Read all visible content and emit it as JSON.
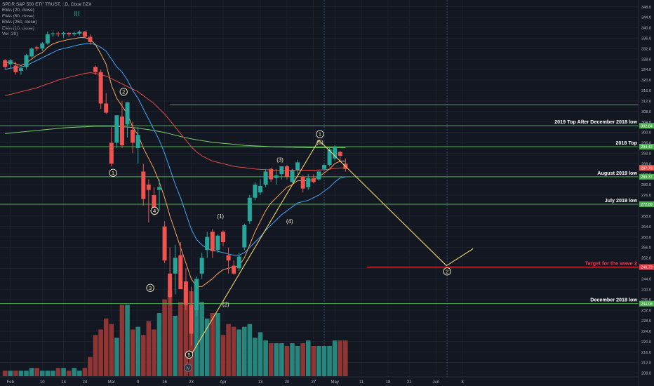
{
  "legend": {
    "lines": [
      "SPDR S&P 500 ETF TRUST, 1D, Cboe BZX",
      "EMA (20, close)",
      "EMA (60, close)",
      "EMA (250, close)",
      "EMA (10, close)",
      "Vol (20)"
    ]
  },
  "colors": {
    "background": "#131722",
    "up": "#26a69a",
    "down": "#ef5350",
    "vol_up": "#26857d",
    "vol_down": "#8f3534",
    "ema10": "#f7a35c",
    "ema20": "#42a5f5",
    "ema60": "#e04a4a",
    "ema250": "#7dcc6e",
    "level_line": "#4caf50",
    "target_line": "#f23645",
    "wave_path": "#f2d36b",
    "wave_label": "#f7f0c8",
    "axis_text": "#b2b5be"
  },
  "chart_data": {
    "type": "candlestick",
    "title": "SPDR S&P 500 ETF TRUST, 1D, Cboe BZX",
    "y_axis_ticks": [
      208,
      212,
      216,
      220,
      224,
      228,
      232,
      236,
      240,
      244,
      248,
      252,
      256,
      260,
      264,
      268,
      272,
      276,
      280,
      284,
      288,
      292,
      296,
      300,
      304,
      308,
      312,
      316,
      320,
      324,
      328,
      332,
      336,
      340,
      344,
      348
    ],
    "ylim": [
      206.5,
      349.5
    ],
    "x_axis_ticks": [
      {
        "label": "Feb",
        "bar": 1
      },
      {
        "label": "10",
        "bar": 7
      },
      {
        "label": "14",
        "bar": 11
      },
      {
        "label": "24",
        "bar": 15
      },
      {
        "label": "Mar",
        "bar": 20
      },
      {
        "label": "9",
        "bar": 25
      },
      {
        "label": "16",
        "bar": 30
      },
      {
        "label": "23",
        "bar": 35
      },
      {
        "label": "Apr",
        "bar": 41
      },
      {
        "label": "13",
        "bar": 48
      },
      {
        "label": "20",
        "bar": 53
      },
      {
        "label": "27",
        "bar": 58
      },
      {
        "label": "May",
        "bar": 62
      },
      {
        "label": "11",
        "bar": 67
      },
      {
        "label": "18",
        "bar": 72
      },
      {
        "label": "22",
        "bar": 76
      },
      {
        "label": "Jun",
        "bar": 81
      },
      {
        "label": "8",
        "bar": 86
      }
    ],
    "candles": [
      {
        "o": 327.5,
        "h": 328.0,
        "l": 324.0,
        "c": 325.0
      },
      {
        "o": 326.0,
        "h": 328.0,
        "l": 324.5,
        "c": 327.5
      },
      {
        "o": 325.5,
        "h": 327.0,
        "l": 322.0,
        "c": 323.0
      },
      {
        "o": 323.5,
        "h": 325.0,
        "l": 322.0,
        "c": 324.5
      },
      {
        "o": 325.0,
        "h": 330.0,
        "l": 324.0,
        "c": 329.5
      },
      {
        "o": 329.0,
        "h": 332.5,
        "l": 328.5,
        "c": 332.0
      },
      {
        "o": 332.5,
        "h": 333.0,
        "l": 331.0,
        "c": 332.0
      },
      {
        "o": 332.0,
        "h": 334.5,
        "l": 331.0,
        "c": 334.0
      },
      {
        "o": 334.0,
        "h": 338.5,
        "l": 333.5,
        "c": 337.5
      },
      {
        "o": 337.5,
        "h": 338.5,
        "l": 336.5,
        "c": 337.8
      },
      {
        "o": 337.8,
        "h": 338.5,
        "l": 336.5,
        "c": 337.5
      },
      {
        "o": 337.5,
        "h": 338.5,
        "l": 336.0,
        "c": 338.0
      },
      {
        "o": 338.0,
        "h": 338.2,
        "l": 336.5,
        "c": 337.5
      },
      {
        "o": 337.5,
        "h": 338.5,
        "l": 336.8,
        "c": 338.0
      },
      {
        "o": 337.7,
        "h": 339.0,
        "l": 337.0,
        "c": 338.5
      },
      {
        "o": 338.5,
        "h": 338.8,
        "l": 336.0,
        "c": 336.5
      },
      {
        "o": 336.5,
        "h": 337.5,
        "l": 333.5,
        "c": 334.5
      },
      {
        "o": 325.0,
        "h": 325.5,
        "l": 322.0,
        "c": 323.0
      },
      {
        "o": 323.0,
        "h": 324.0,
        "l": 309.0,
        "c": 311.0
      },
      {
        "o": 311.0,
        "h": 315.0,
        "l": 307.0,
        "c": 307.5
      },
      {
        "o": 296.0,
        "h": 302.0,
        "l": 287.0,
        "c": 288.0
      },
      {
        "o": 296.0,
        "h": 306.0,
        "l": 294.0,
        "c": 306.5
      },
      {
        "o": 306.0,
        "h": 312.0,
        "l": 294.0,
        "c": 295.0
      },
      {
        "o": 303.0,
        "h": 311.0,
        "l": 298.0,
        "c": 311.5
      },
      {
        "o": 301.0,
        "h": 304.0,
        "l": 292.0,
        "c": 296.0
      },
      {
        "o": 294.0,
        "h": 302.0,
        "l": 288.0,
        "c": 299.0
      },
      {
        "o": 285.0,
        "h": 288.0,
        "l": 272.0,
        "c": 274.5
      },
      {
        "o": 280.0,
        "h": 282.0,
        "l": 265.5,
        "c": 278.0
      },
      {
        "o": 276.0,
        "h": 279.0,
        "l": 268.0,
        "c": 270.0
      },
      {
        "o": 278.0,
        "h": 282.0,
        "l": 270.0,
        "c": 279.0
      },
      {
        "o": 264.0,
        "h": 266.0,
        "l": 250.0,
        "c": 251.0
      },
      {
        "o": 246.0,
        "h": 256.0,
        "l": 234.0,
        "c": 237.0
      },
      {
        "o": 246.0,
        "h": 257.0,
        "l": 238.0,
        "c": 252.0
      },
      {
        "o": 253.0,
        "h": 258.0,
        "l": 240.0,
        "c": 240.0
      },
      {
        "o": 243.0,
        "h": 248.0,
        "l": 232.0,
        "c": 234.0
      },
      {
        "o": 234.0,
        "h": 241.0,
        "l": 218.5,
        "c": 223.0
      },
      {
        "o": 232.0,
        "h": 245.0,
        "l": 230.0,
        "c": 244.0
      },
      {
        "o": 246.0,
        "h": 254.0,
        "l": 244.0,
        "c": 252.0
      },
      {
        "o": 255.0,
        "h": 262.0,
        "l": 252.0,
        "c": 260.0
      },
      {
        "o": 262.0,
        "h": 263.0,
        "l": 252.0,
        "c": 254.5
      },
      {
        "o": 255.0,
        "h": 261.0,
        "l": 254.0,
        "c": 260.5
      },
      {
        "o": 262.0,
        "h": 262.5,
        "l": 256.5,
        "c": 258.0
      },
      {
        "o": 253.0,
        "h": 256.0,
        "l": 246.0,
        "c": 251.0
      },
      {
        "o": 249.0,
        "h": 251.0,
        "l": 245.5,
        "c": 246.0
      },
      {
        "o": 248.0,
        "h": 254.0,
        "l": 247.0,
        "c": 252.5
      },
      {
        "o": 256.0,
        "h": 265.0,
        "l": 255.0,
        "c": 264.5
      },
      {
        "o": 266.0,
        "h": 276.0,
        "l": 265.0,
        "c": 275.0
      },
      {
        "o": 275.0,
        "h": 281.0,
        "l": 274.0,
        "c": 280.0
      },
      {
        "o": 277.0,
        "h": 282.0,
        "l": 276.0,
        "c": 279.5
      },
      {
        "o": 280.0,
        "h": 286.0,
        "l": 279.0,
        "c": 285.0
      },
      {
        "o": 286.0,
        "h": 286.5,
        "l": 281.0,
        "c": 282.0
      },
      {
        "o": 282.5,
        "h": 286.0,
        "l": 280.0,
        "c": 283.5
      },
      {
        "o": 284.0,
        "h": 287.0,
        "l": 282.0,
        "c": 287.0
      },
      {
        "o": 287.0,
        "h": 287.5,
        "l": 282.0,
        "c": 283.0
      },
      {
        "o": 281.0,
        "h": 286.0,
        "l": 280.5,
        "c": 285.5
      },
      {
        "o": 285.5,
        "h": 289.5,
        "l": 284.0,
        "c": 288.5
      },
      {
        "o": 283.0,
        "h": 283.5,
        "l": 277.0,
        "c": 278.5
      },
      {
        "o": 279.0,
        "h": 284.0,
        "l": 278.0,
        "c": 282.5
      },
      {
        "o": 282.5,
        "h": 284.0,
        "l": 280.5,
        "c": 281.0
      },
      {
        "o": 282.0,
        "h": 285.5,
        "l": 281.5,
        "c": 285.0
      },
      {
        "o": 286.0,
        "h": 288.0,
        "l": 285.0,
        "c": 287.5
      },
      {
        "o": 287.5,
        "h": 294.0,
        "l": 287.0,
        "c": 293.5
      },
      {
        "o": 290.0,
        "h": 295.0,
        "l": 289.0,
        "c": 294.5
      },
      {
        "o": 292.5,
        "h": 293.0,
        "l": 288.5,
        "c": 291.0
      },
      {
        "o": 288.0,
        "h": 290.0,
        "l": 285.0,
        "c": 286.0
      }
    ],
    "volume": [
      2,
      2,
      2,
      2,
      2,
      3,
      3,
      2,
      2,
      2,
      3,
      3,
      2,
      3,
      2,
      3,
      7,
      15,
      17,
      21,
      19,
      14,
      26,
      26,
      17,
      18,
      15,
      20,
      17,
      23,
      28,
      31,
      22,
      27,
      32,
      31,
      34,
      27,
      21,
      23,
      23,
      15,
      19,
      18,
      17,
      18,
      19,
      14,
      16,
      13,
      12,
      12,
      12,
      11,
      12,
      11,
      12,
      13,
      11,
      11,
      11,
      11,
      13,
      13,
      13
    ],
    "volume_max": 34,
    "ema10": [
      326.5,
      326.8,
      326.2,
      325.5,
      326.5,
      328,
      329.5,
      330.5,
      332.5,
      333.8,
      334.5,
      335,
      335.5,
      335.8,
      336.2,
      336.2,
      335.5,
      333.5,
      330,
      326,
      318,
      313,
      310,
      307,
      302,
      299,
      294,
      290,
      286,
      281,
      275,
      268,
      262,
      256,
      250,
      244,
      241,
      241,
      242.5,
      244,
      246,
      247.5,
      248,
      248.5,
      249,
      252,
      257,
      262,
      266,
      270,
      273,
      275,
      277,
      279,
      280,
      281.5,
      281.5,
      281.5,
      282,
      283,
      284.5,
      286,
      288,
      289,
      289
    ],
    "ema20": [
      324,
      324.5,
      324.8,
      325,
      325.5,
      326.5,
      327.5,
      328.5,
      329.5,
      330.5,
      331.5,
      332,
      332.5,
      333,
      333.5,
      333.8,
      334,
      333.5,
      332.5,
      331,
      328,
      325,
      323,
      320,
      316,
      313,
      309,
      305,
      301,
      297,
      292,
      286,
      280,
      275,
      269,
      263,
      259,
      257,
      255.5,
      255,
      254.5,
      254,
      253.5,
      253,
      253,
      254,
      256,
      258,
      260,
      262.5,
      264.5,
      266.5,
      268.5,
      270,
      271.5,
      273,
      273.5,
      274,
      275,
      276,
      277.5,
      279,
      281,
      282.5,
      283
    ],
    "ema60": [
      314,
      314.5,
      315,
      315.5,
      316,
      316.5,
      317,
      317.8,
      318.5,
      319.2,
      320,
      320.5,
      321,
      321.5,
      322,
      322.5,
      322.8,
      322.5,
      322,
      321.5,
      320.5,
      319.5,
      318.5,
      317.5,
      316.5,
      315.5,
      314,
      312.5,
      311,
      309,
      307,
      304.5,
      302,
      299.5,
      297,
      294.5,
      292.5,
      291,
      290,
      289,
      288.5,
      288,
      287.5,
      287,
      286.7,
      286.5,
      286.2,
      286,
      285.8,
      285.7,
      285.6,
      285.5,
      285.5,
      285.5,
      285.5,
      285.5,
      285.5,
      285.5,
      285.5,
      285.6,
      285.7,
      285.9,
      286.2,
      286.4,
      286.4
    ],
    "ema250": [
      299.5,
      299.7,
      299.9,
      300.1,
      300.3,
      300.5,
      300.7,
      300.9,
      301.1,
      301.3,
      301.5,
      301.7,
      301.8,
      301.9,
      302,
      302.1,
      302.2,
      302.3,
      302.3,
      302.3,
      302.3,
      302.2,
      302.1,
      302,
      301.8,
      301.6,
      301.3,
      301,
      300.7,
      300.3,
      299.9,
      299.4,
      298.9,
      298.4,
      297.9,
      297.5,
      297.1,
      296.8,
      296.5,
      296.2,
      296,
      295.8,
      295.6,
      295.4,
      295.2,
      295,
      294.9,
      294.8,
      294.7,
      294.6,
      294.5,
      294.4,
      294.4,
      294.3,
      294.3,
      294.2,
      294.2,
      294.1,
      294.1,
      294.1,
      294.1,
      294.1,
      294.1,
      294.1,
      294.1
    ],
    "horizontal_levels": [
      {
        "label": "",
        "value": 310.5,
        "price_tag": ""
      },
      {
        "label": "2019 Top After December 2018 low",
        "value": 302.5,
        "price_tag": "302.84"
      },
      {
        "label": "2018 Top",
        "value": 294.5,
        "price_tag": "294.42"
      },
      {
        "label": "August 2019 low",
        "value": 283.0,
        "price_tag": "283.37"
      },
      {
        "label": "July 2019 low",
        "value": 272.5,
        "price_tag": "272.89"
      },
      {
        "label": "December 2018 low",
        "value": 234.5,
        "price_tag": "234.08"
      }
    ],
    "target_level": {
      "label": "Target for the wave 2",
      "value": 248.5,
      "price_tag": "248.72"
    },
    "last_price_tag": "287.79",
    "wave_path": [
      {
        "bar": 35,
        "price": 215
      },
      {
        "bar": 59,
        "price": 297
      },
      {
        "bar": 83,
        "price": 249
      },
      {
        "bar": 88,
        "price": 255.5
      }
    ],
    "wave_labels": [
      {
        "text": "III",
        "bar": 13.5,
        "price": 345.5,
        "circled": false,
        "style": "big"
      },
      {
        "text": "1",
        "bar": 20.3,
        "price": 284.5,
        "circled": true
      },
      {
        "text": "2",
        "bar": 22.3,
        "price": 315.5,
        "circled": true
      },
      {
        "text": "3",
        "bar": 27.3,
        "price": 240.5,
        "circled": true
      },
      {
        "text": "4",
        "bar": 28.1,
        "price": 270.0,
        "circled": true
      },
      {
        "text": "5",
        "bar": 34.6,
        "price": 215.0,
        "circled": true
      },
      {
        "text": "IV",
        "bar": 34.4,
        "price": 210.0,
        "circled": true,
        "style": "dark"
      },
      {
        "text": "(1)",
        "bar": 40.5,
        "price": 268.0,
        "circled": false
      },
      {
        "text": "(2)",
        "bar": 41.5,
        "price": 234.3,
        "circled": false
      },
      {
        "text": "(3)",
        "bar": 51.7,
        "price": 289.6,
        "circled": false
      },
      {
        "text": "(4)",
        "bar": 53.5,
        "price": 266.0,
        "circled": false
      },
      {
        "text": "(5)",
        "bar": 59.2,
        "price": 296.2,
        "circled": false
      },
      {
        "text": "1",
        "bar": 59.2,
        "price": 299.3,
        "circled": true
      },
      {
        "text": "2",
        "bar": 83.1,
        "price": 246.8,
        "circled": true
      }
    ]
  }
}
